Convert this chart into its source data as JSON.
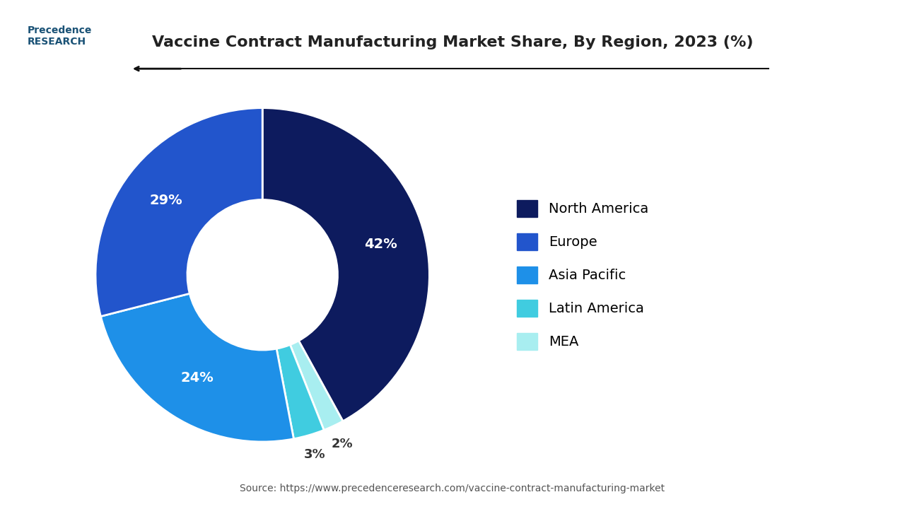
{
  "title": "Vaccine Contract Manufacturing Market Share, By Region, 2023 (%)",
  "labels": [
    "North America",
    "Europe",
    "Asia Pacific",
    "Latin America",
    "MEA"
  ],
  "values": [
    42,
    29,
    24,
    3,
    2
  ],
  "colors": [
    "#0d1b5e",
    "#2255cc",
    "#1e90e8",
    "#40cce0",
    "#a8eef0"
  ],
  "pct_labels": [
    "42%",
    "29%",
    "24%",
    "3%",
    "2%"
  ],
  "source": "Source: https://www.precedenceresearch.com/vaccine-contract-manufacturing-market",
  "background_color": "#ffffff"
}
